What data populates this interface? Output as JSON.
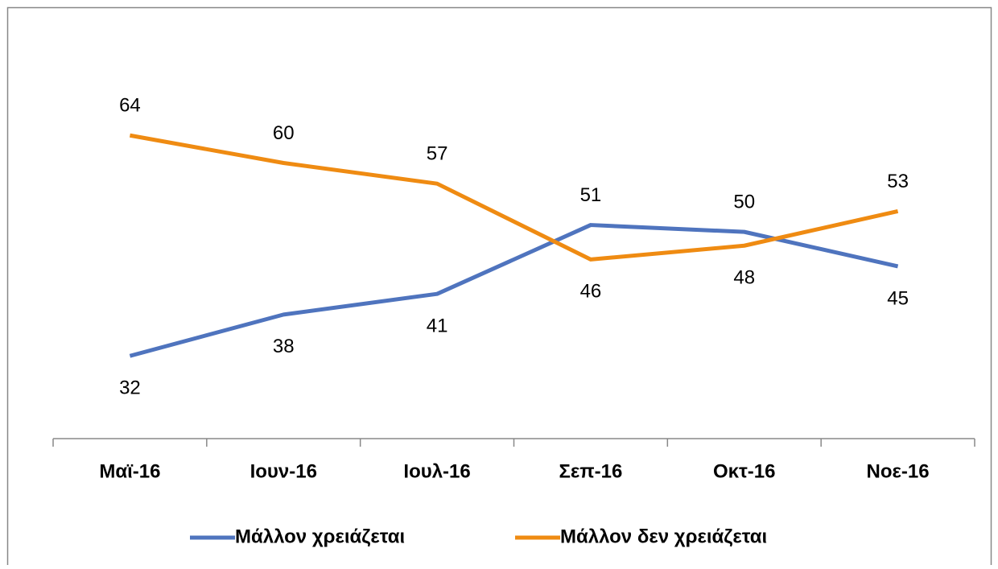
{
  "chart_data": {
    "type": "line",
    "categories": [
      "Μαϊ-16",
      "Ιουν-16",
      "Ιουλ-16",
      "Σεπ-16",
      "Οκτ-16",
      "Νοε-16"
    ],
    "series": [
      {
        "name": "Μάλλον χρειάζεται",
        "color": "#4f74be",
        "values": [
          32,
          38,
          41,
          51,
          50,
          45
        ]
      },
      {
        "name": "Μάλλον δεν χρειάζεται",
        "color": "#ef8b12",
        "values": [
          64,
          60,
          57,
          46,
          48,
          53
        ]
      }
    ],
    "ylim": [
      20,
      80
    ],
    "legend": "bottom"
  }
}
